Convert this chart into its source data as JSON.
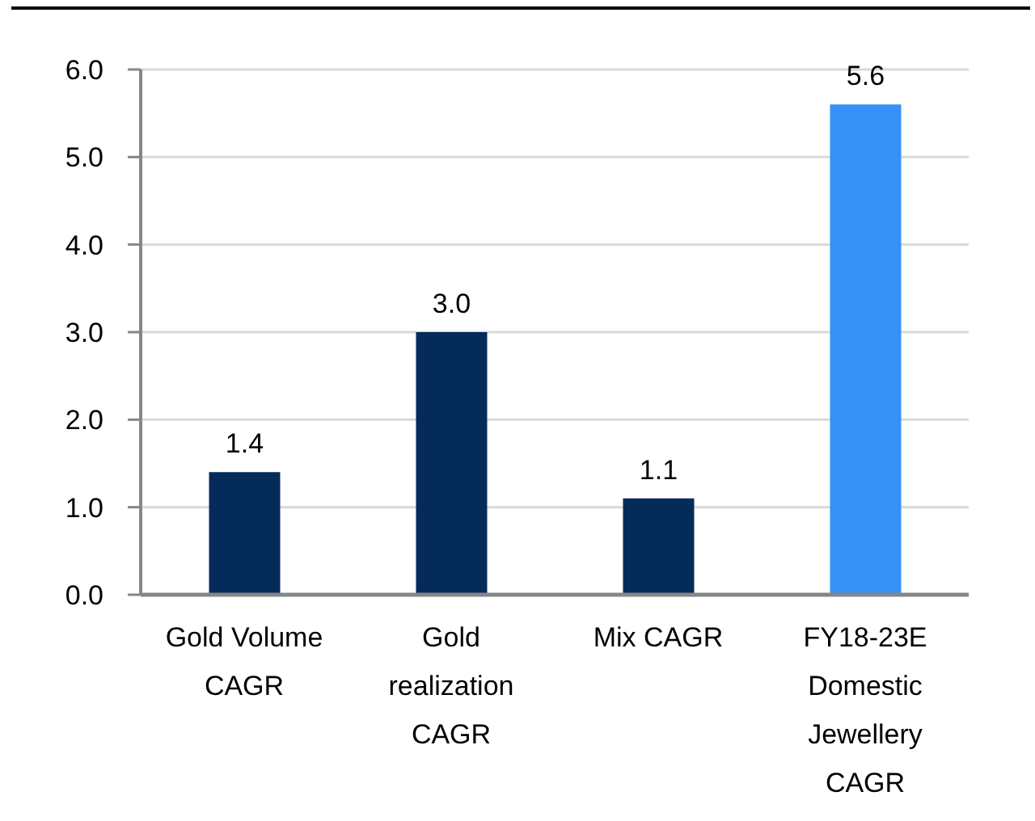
{
  "chart_data": {
    "type": "bar",
    "categories": [
      "Gold Volume CAGR",
      "Gold realization CAGR",
      "Mix CAGR",
      "FY18-23E Domestic Jewellery CAGR"
    ],
    "values": [
      1.4,
      3.0,
      1.1,
      5.6
    ],
    "colors": [
      "#052b5b",
      "#052b5b",
      "#052b5b",
      "#3591f6"
    ],
    "value_labels": [
      "1.4",
      "3.0",
      "1.1",
      "5.6"
    ],
    "ylim": [
      0,
      6
    ],
    "yticks": [
      {
        "value": 0,
        "label": "0.0"
      },
      {
        "value": 1,
        "label": "1.0"
      },
      {
        "value": 2,
        "label": "2.0"
      },
      {
        "value": 3,
        "label": "3.0"
      },
      {
        "value": 4,
        "label": "4.0"
      },
      {
        "value": 5,
        "label": "5.0"
      },
      {
        "value": 6,
        "label": "6.0"
      }
    ],
    "grid": "y"
  }
}
